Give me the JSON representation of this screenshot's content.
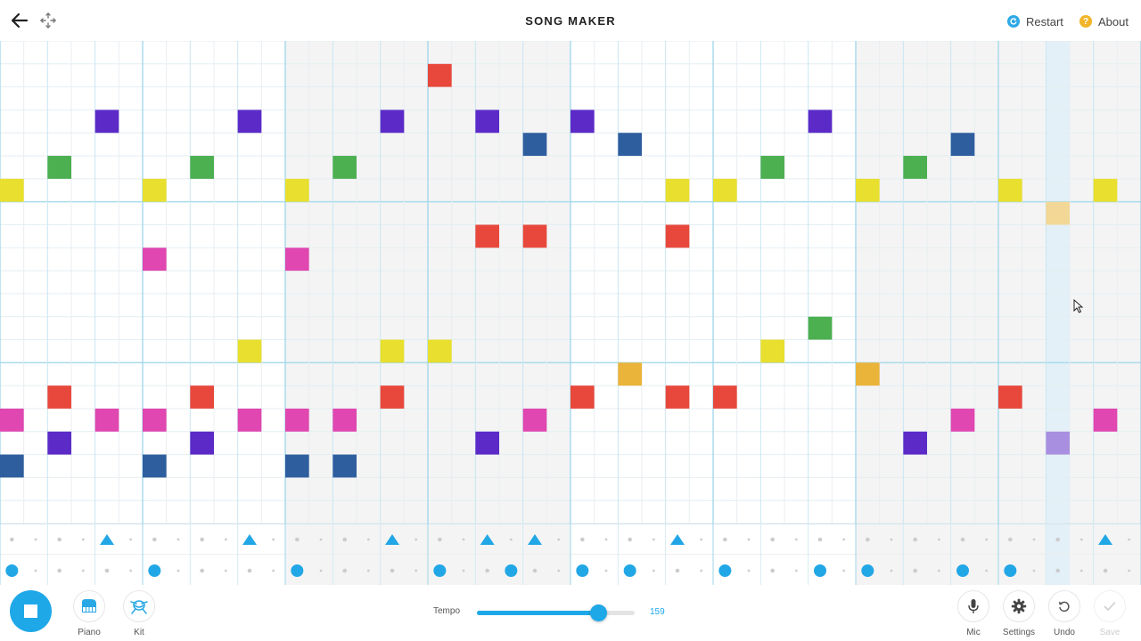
{
  "header": {
    "title": "SONG MAKER",
    "restart_label": "Restart",
    "about_label": "About",
    "about_icon_char": "?"
  },
  "icons": {
    "back": "arrow-left-icon",
    "move": "move-arrows-icon",
    "restart": "restart-icon",
    "about": "help-icon",
    "play": "stop-icon",
    "piano": "piano-icon",
    "kit": "drum-kit-icon",
    "mic": "microphone-icon",
    "settings": "gear-icon",
    "undo": "undo-icon",
    "save": "check-icon"
  },
  "grid": {
    "columns": 48,
    "rows": 21,
    "steps_per_beat": 2,
    "beats_per_bar": 3,
    "highlight_column": 44,
    "notes": [
      {
        "col": 0,
        "row": 6,
        "color": "#e8df2e"
      },
      {
        "col": 0,
        "row": 16,
        "color": "#e047b0"
      },
      {
        "col": 0,
        "row": 18,
        "color": "#2f5e9e"
      },
      {
        "col": 2,
        "row": 5,
        "color": "#4caf50"
      },
      {
        "col": 2,
        "row": 15,
        "color": "#e8483b"
      },
      {
        "col": 2,
        "row": 17,
        "color": "#5c2bc7"
      },
      {
        "col": 4,
        "row": 3,
        "color": "#5c2bc7"
      },
      {
        "col": 4,
        "row": 16,
        "color": "#e047b0"
      },
      {
        "col": 6,
        "row": 6,
        "color": "#e8df2e"
      },
      {
        "col": 6,
        "row": 9,
        "color": "#e047b0"
      },
      {
        "col": 6,
        "row": 16,
        "color": "#e047b0"
      },
      {
        "col": 6,
        "row": 18,
        "color": "#2f5e9e"
      },
      {
        "col": 8,
        "row": 5,
        "color": "#4caf50"
      },
      {
        "col": 8,
        "row": 15,
        "color": "#e8483b"
      },
      {
        "col": 8,
        "row": 17,
        "color": "#5c2bc7"
      },
      {
        "col": 10,
        "row": 3,
        "color": "#5c2bc7"
      },
      {
        "col": 10,
        "row": 13,
        "color": "#e8df2e"
      },
      {
        "col": 10,
        "row": 16,
        "color": "#e047b0"
      },
      {
        "col": 12,
        "row": 6,
        "color": "#e8df2e"
      },
      {
        "col": 12,
        "row": 9,
        "color": "#e047b0"
      },
      {
        "col": 12,
        "row": 16,
        "color": "#e047b0"
      },
      {
        "col": 12,
        "row": 18,
        "color": "#2f5e9e"
      },
      {
        "col": 14,
        "row": 5,
        "color": "#4caf50"
      },
      {
        "col": 14,
        "row": 16,
        "color": "#e047b0"
      },
      {
        "col": 14,
        "row": 18,
        "color": "#2f5e9e"
      },
      {
        "col": 16,
        "row": 3,
        "color": "#5c2bc7"
      },
      {
        "col": 16,
        "row": 13,
        "color": "#e8df2e"
      },
      {
        "col": 16,
        "row": 15,
        "color": "#e8483b"
      },
      {
        "col": 18,
        "row": 1,
        "color": "#e8483b"
      },
      {
        "col": 18,
        "row": 13,
        "color": "#e8df2e"
      },
      {
        "col": 20,
        "row": 3,
        "color": "#5c2bc7"
      },
      {
        "col": 20,
        "row": 8,
        "color": "#e8483b"
      },
      {
        "col": 20,
        "row": 17,
        "color": "#5c2bc7"
      },
      {
        "col": 22,
        "row": 4,
        "color": "#2f5e9e"
      },
      {
        "col": 22,
        "row": 8,
        "color": "#e8483b"
      },
      {
        "col": 22,
        "row": 16,
        "color": "#e047b0"
      },
      {
        "col": 24,
        "row": 3,
        "color": "#5c2bc7"
      },
      {
        "col": 24,
        "row": 15,
        "color": "#e8483b"
      },
      {
        "col": 26,
        "row": 4,
        "color": "#2f5e9e"
      },
      {
        "col": 26,
        "row": 14,
        "color": "#eab33a"
      },
      {
        "col": 28,
        "row": 6,
        "color": "#e8df2e"
      },
      {
        "col": 28,
        "row": 8,
        "color": "#e8483b"
      },
      {
        "col": 28,
        "row": 15,
        "color": "#e8483b"
      },
      {
        "col": 30,
        "row": 6,
        "color": "#e8df2e"
      },
      {
        "col": 30,
        "row": 15,
        "color": "#e8483b"
      },
      {
        "col": 32,
        "row": 5,
        "color": "#4caf50"
      },
      {
        "col": 32,
        "row": 13,
        "color": "#e8df2e"
      },
      {
        "col": 34,
        "row": 3,
        "color": "#5c2bc7"
      },
      {
        "col": 34,
        "row": 12,
        "color": "#4caf50"
      },
      {
        "col": 36,
        "row": 6,
        "color": "#e8df2e"
      },
      {
        "col": 36,
        "row": 14,
        "color": "#eab33a"
      },
      {
        "col": 38,
        "row": 5,
        "color": "#4caf50"
      },
      {
        "col": 38,
        "row": 17,
        "color": "#5c2bc7"
      },
      {
        "col": 40,
        "row": 4,
        "color": "#2f5e9e"
      },
      {
        "col": 40,
        "row": 16,
        "color": "#e047b0"
      },
      {
        "col": 42,
        "row": 6,
        "color": "#e8df2e"
      },
      {
        "col": 42,
        "row": 15,
        "color": "#e8483b"
      },
      {
        "col": 44,
        "row": 7,
        "color": "#f3d796"
      },
      {
        "col": 44,
        "row": 17,
        "color": "#a98fe0"
      },
      {
        "col": 46,
        "row": 6,
        "color": "#e8df2e"
      },
      {
        "col": 46,
        "row": 16,
        "color": "#e047b0"
      }
    ]
  },
  "rhythm": {
    "triangles": [
      4,
      10,
      16,
      20,
      22,
      28,
      46
    ],
    "circles": [
      0,
      6,
      12,
      18,
      21,
      24,
      26,
      30,
      34,
      36,
      40,
      42
    ]
  },
  "bottom": {
    "piano_label": "Piano",
    "kit_label": "Kit",
    "tempo_label": "Tempo",
    "tempo_value": "159",
    "tempo_fraction": 0.77,
    "mic_label": "Mic",
    "settings_label": "Settings",
    "undo_label": "Undo",
    "save_label": "Save"
  },
  "colors": {
    "accent": "#1ea8e8",
    "restart": "#2fa9e6",
    "about": "#f2b428",
    "triangle": "#22a7e6",
    "circle": "#22a7e6"
  }
}
